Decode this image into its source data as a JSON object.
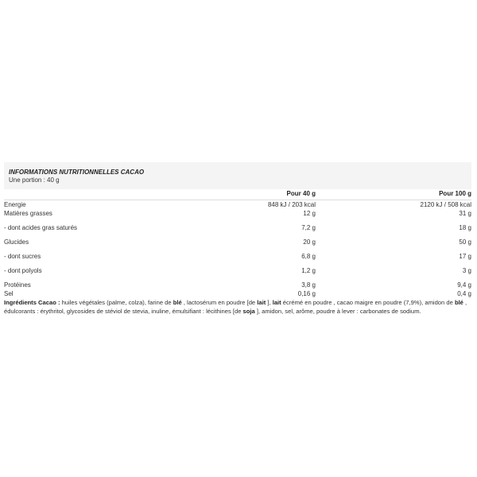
{
  "header": {
    "title": "INFORMATIONS NUTRITIONNELLES CACAO",
    "portion": "Une portion : 40 g"
  },
  "columns": [
    "Pour 40 g",
    "Pour 100 g"
  ],
  "rows": [
    {
      "label": "Energie",
      "per_portion": "848 kJ / 203 kcal",
      "per_100": "2120 kJ / 508 kcal"
    },
    {
      "label": "Matières grasses",
      "per_portion": "12 g",
      "per_100": "31 g"
    },
    {
      "label": "- dont acides gras saturés",
      "per_portion": "7,2 g",
      "per_100": "18 g"
    },
    {
      "label": "Glucides",
      "per_portion": "20 g",
      "per_100": "50 g"
    },
    {
      "label": "- dont sucres",
      "per_portion": "6,8 g",
      "per_100": "17 g"
    },
    {
      "label": "- dont polyols",
      "per_portion": "1,2 g",
      "per_100": "3 g"
    },
    {
      "label": "Protéines",
      "per_portion": "3,8 g",
      "per_100": "9,4 g"
    },
    {
      "label": "Sel",
      "per_portion": "0,16 g",
      "per_100": "0,4 g"
    }
  ],
  "ingredients": [
    {
      "text": "Ingrédients Cacao :",
      "bold": true
    },
    {
      "text": " huiles végétales (palme, colza), farine de ",
      "bold": false
    },
    {
      "text": "blé",
      "bold": true
    },
    {
      "text": " , lactosérum en poudre [de ",
      "bold": false
    },
    {
      "text": "lait",
      "bold": true
    },
    {
      "text": " ], ",
      "bold": false
    },
    {
      "text": "lait",
      "bold": true
    },
    {
      "text": " écrémé en poudre , cacao maigre en poudre (7,9%), amidon de ",
      "bold": false
    },
    {
      "text": "blé",
      "bold": true
    },
    {
      "text": " , édulcorants : érythritol, glycosides de stéviol de stevia, inuline, émulsifiant : lécithines [de ",
      "bold": false
    },
    {
      "text": "soja",
      "bold": true
    },
    {
      "text": " ], amidon, sel, arôme, poudre à lever : carbonates de sodium.",
      "bold": false
    }
  ]
}
